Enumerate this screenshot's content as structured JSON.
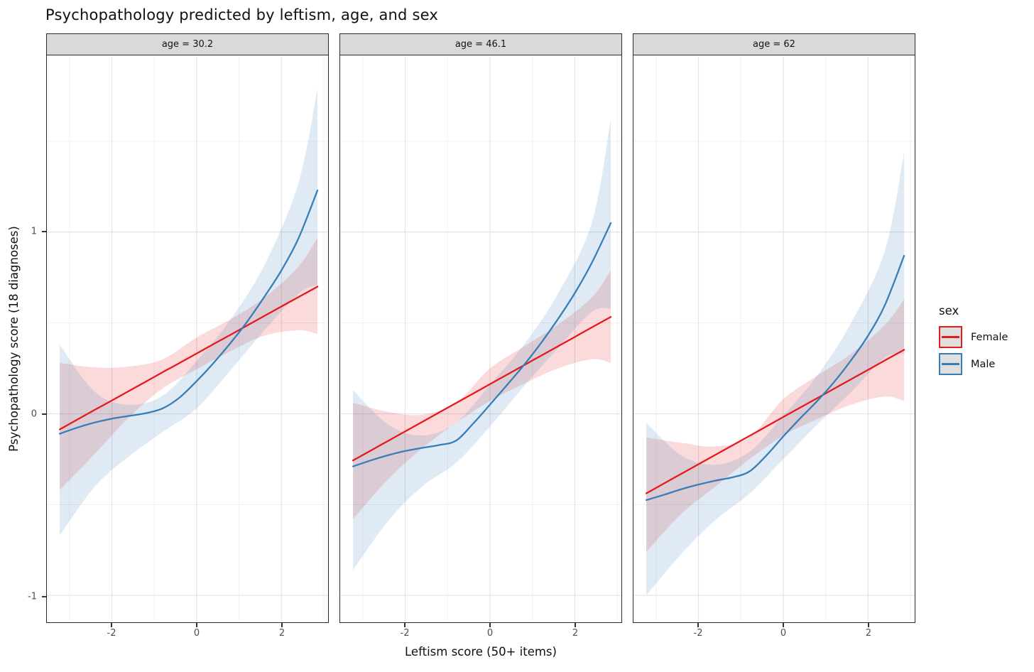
{
  "title": "Psychopathology predicted by leftism, age, and sex",
  "x_axis": {
    "label": "Leftism score (50+ items)",
    "tick_labels": [
      "-2",
      "0",
      "2"
    ],
    "tick_values": [
      -2,
      0,
      2
    ],
    "minor_gridlines": [
      -3,
      -1,
      1,
      3
    ],
    "range": [
      -3.53,
      3.1
    ]
  },
  "y_axis": {
    "label": "Psychopathology score (18 diagnoses)",
    "tick_labels": [
      "1",
      "0",
      "-1"
    ],
    "tick_values": [
      1,
      0,
      -1
    ],
    "minor_gridlines": [
      1.5,
      0.5,
      -0.5
    ],
    "range": [
      -1.18,
      1.96
    ]
  },
  "legend": {
    "title": "sex",
    "entries": [
      {
        "label": "Female",
        "color": "#E41A1C"
      },
      {
        "label": "Male",
        "color": "#377EB8"
      }
    ]
  },
  "style": {
    "band_opacity": 0.16,
    "grid_major": "#E3E3E3",
    "grid_minor": "#F0F0F0",
    "panel_border": "#2B2B2B",
    "strip_fill": "#D9D9D9",
    "line_width": 2.3
  },
  "chart_data": {
    "type": "line",
    "facet_variable": "age",
    "line_x": [
      -3.23,
      -2.8,
      -2.4,
      -2.0,
      -1.6,
      -1.2,
      -0.8,
      -0.4,
      0,
      0.4,
      0.8,
      1.2,
      1.6,
      2.0,
      2.4,
      2.85
    ],
    "band_x": [
      -3.23,
      -2.4,
      -1.6,
      -0.8,
      0,
      0.8,
      1.6,
      2.4,
      2.85
    ],
    "panels": [
      {
        "label": "age = 30.2",
        "series": [
          {
            "name": "Female",
            "color": "#E41A1C",
            "y": [
              -0.086,
              -0.03,
              0.022,
              0.073,
              0.125,
              0.177,
              0.229,
              0.28,
              0.332,
              0.384,
              0.435,
              0.487,
              0.539,
              0.591,
              0.642,
              0.7
            ],
            "band_upper": [
              0.28,
              0.255,
              0.26,
              0.3,
              0.42,
              0.52,
              0.64,
              0.81,
              0.97
            ],
            "band_lower": [
              -0.42,
              -0.22,
              -0.02,
              0.14,
              0.245,
              0.345,
              0.43,
              0.46,
              0.44
            ]
          },
          {
            "name": "Male",
            "color": "#377EB8",
            "y": [
              -0.11,
              -0.075,
              -0.048,
              -0.027,
              -0.012,
              0.003,
              0.03,
              0.09,
              0.18,
              0.28,
              0.39,
              0.51,
              0.645,
              0.79,
              0.965,
              1.23
            ],
            "band_upper": [
              0.38,
              0.12,
              0.05,
              0.1,
              0.29,
              0.52,
              0.82,
              1.27,
              1.79
            ],
            "band_lower": [
              -0.67,
              -0.4,
              -0.235,
              -0.1,
              0.03,
              0.24,
              0.46,
              0.66,
              0.71
            ]
          }
        ]
      },
      {
        "label": "age = 46.1",
        "series": [
          {
            "name": "Female",
            "color": "#E41A1C",
            "y": [
              -0.257,
              -0.201,
              -0.149,
              -0.097,
              -0.045,
              0.007,
              0.059,
              0.111,
              0.163,
              0.215,
              0.267,
              0.319,
              0.371,
              0.423,
              0.475,
              0.533
            ],
            "band_upper": [
              0.06,
              0.01,
              -0.005,
              0.06,
              0.25,
              0.37,
              0.49,
              0.64,
              0.79
            ],
            "band_lower": [
              -0.58,
              -0.36,
              -0.19,
              -0.05,
              0.07,
              0.165,
              0.25,
              0.3,
              0.28
            ]
          },
          {
            "name": "Male",
            "color": "#377EB8",
            "y": [
              -0.29,
              -0.256,
              -0.228,
              -0.205,
              -0.188,
              -0.172,
              -0.148,
              -0.055,
              0.05,
              0.158,
              0.268,
              0.388,
              0.52,
              0.664,
              0.83,
              1.05
            ],
            "band_upper": [
              0.13,
              -0.06,
              -0.12,
              -0.05,
              0.16,
              0.38,
              0.66,
              1.05,
              1.62
            ],
            "band_lower": [
              -0.86,
              -0.59,
              -0.4,
              -0.27,
              -0.07,
              0.15,
              0.36,
              0.56,
              0.58
            ]
          }
        ]
      },
      {
        "label": "age = 62",
        "series": [
          {
            "name": "Female",
            "color": "#E41A1C",
            "y": [
              -0.438,
              -0.382,
              -0.33,
              -0.278,
              -0.226,
              -0.174,
              -0.122,
              -0.07,
              -0.018,
              0.034,
              0.086,
              0.138,
              0.19,
              0.242,
              0.294,
              0.352
            ],
            "band_upper": [
              -0.13,
              -0.16,
              -0.18,
              -0.13,
              0.08,
              0.21,
              0.33,
              0.49,
              0.63
            ],
            "band_lower": [
              -0.76,
              -0.55,
              -0.4,
              -0.25,
              -0.12,
              -0.03,
              0.05,
              0.095,
              0.07
            ]
          },
          {
            "name": "Male",
            "color": "#377EB8",
            "y": [
              -0.475,
              -0.445,
              -0.415,
              -0.39,
              -0.368,
              -0.35,
              -0.318,
              -0.23,
              -0.125,
              -0.025,
              0.07,
              0.175,
              0.295,
              0.43,
              0.6,
              0.87
            ],
            "band_upper": [
              -0.05,
              -0.23,
              -0.28,
              -0.21,
              -0.01,
              0.21,
              0.5,
              0.9,
              1.44
            ],
            "band_lower": [
              -1.0,
              -0.77,
              -0.585,
              -0.44,
              -0.25,
              -0.06,
              0.12,
              0.31,
              0.33
            ]
          }
        ]
      }
    ]
  }
}
